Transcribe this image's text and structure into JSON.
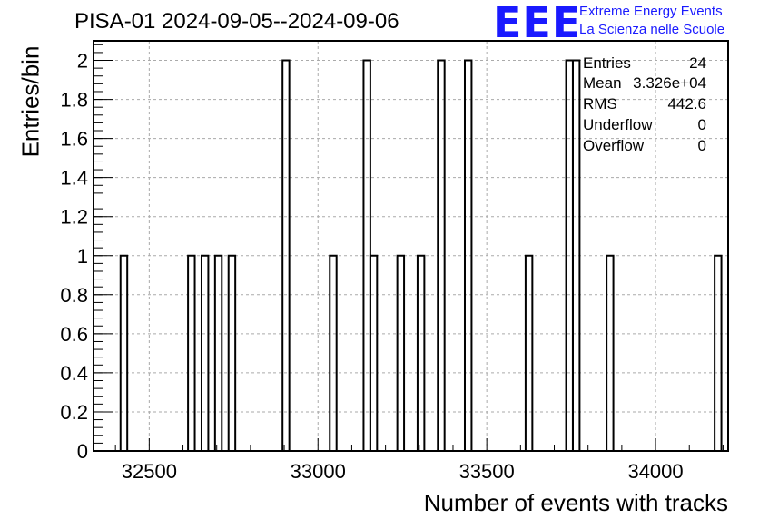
{
  "title": "PISA-01 2024-09-05--2024-09-06",
  "logo": {
    "mark": "EEE",
    "line1": "Extreme Energy Events",
    "line2": "La Scienza nelle Scuole",
    "color": "#1a1aff"
  },
  "stats": {
    "entries_label": "Entries",
    "entries_value": "24",
    "mean_label": "Mean",
    "mean_value": "3.326e+04",
    "rms_label": "RMS",
    "rms_value": "442.6",
    "underflow_label": "Underflow",
    "underflow_value": "0",
    "overflow_label": "Overflow",
    "overflow_value": "0"
  },
  "chart_data": {
    "type": "bar",
    "title": "PISA-01 2024-09-05--2024-09-06",
    "xlabel": "Number of events with tracks",
    "ylabel": "Entries/bin",
    "xlim": [
      32335,
      34215
    ],
    "ylim": [
      0,
      2.1
    ],
    "bin_width": 20,
    "x_ticks": [
      32500,
      33000,
      33500,
      34000
    ],
    "y_ticks": [
      0,
      0.2,
      0.4,
      0.6,
      0.8,
      1,
      1.2,
      1.4,
      1.6,
      1.8,
      2
    ],
    "y_tick_labels": [
      "0",
      "0.2",
      "0.4",
      "0.6",
      "0.8",
      "1",
      "1.2",
      "1.4",
      "1.6",
      "1.8",
      "2"
    ],
    "x_tick_labels": [
      "32500",
      "33000",
      "33500",
      "34000"
    ],
    "grid": true,
    "bins": [
      {
        "x": 32415,
        "value": 1
      },
      {
        "x": 32615,
        "value": 1
      },
      {
        "x": 32655,
        "value": 1
      },
      {
        "x": 32695,
        "value": 1
      },
      {
        "x": 32735,
        "value": 1
      },
      {
        "x": 32895,
        "value": 2
      },
      {
        "x": 33035,
        "value": 1
      },
      {
        "x": 33135,
        "value": 2
      },
      {
        "x": 33155,
        "value": 1
      },
      {
        "x": 33235,
        "value": 1
      },
      {
        "x": 33295,
        "value": 1
      },
      {
        "x": 33355,
        "value": 2
      },
      {
        "x": 33435,
        "value": 2
      },
      {
        "x": 33615,
        "value": 1
      },
      {
        "x": 33735,
        "value": 2
      },
      {
        "x": 33755,
        "value": 2
      },
      {
        "x": 33855,
        "value": 1
      },
      {
        "x": 34175,
        "value": 1
      }
    ],
    "line_color": "#000000",
    "grid_color": "#aaaaaa"
  }
}
